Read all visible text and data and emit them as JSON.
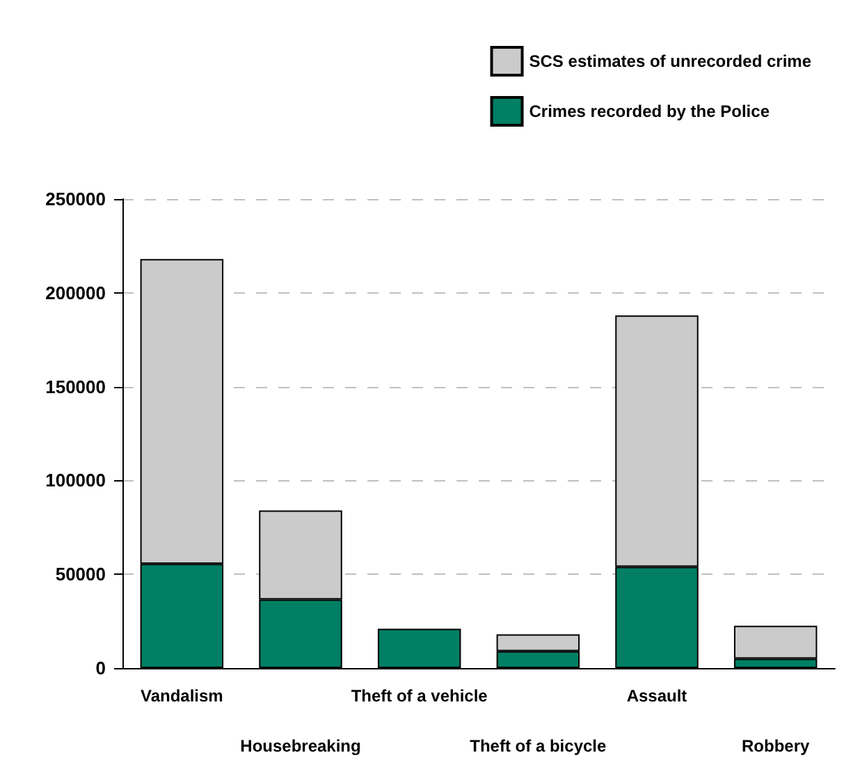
{
  "chart_data": {
    "type": "bar",
    "stacked": true,
    "categories": [
      "Vandalism",
      "Housebreaking",
      "Theft of a vehicle",
      "Theft of a bicycle",
      "Assault",
      "Robbery"
    ],
    "series": [
      {
        "name": "Crimes recorded by the Police",
        "color": "#007f64",
        "values": [
          55500,
          36500,
          21000,
          9000,
          54000,
          5000
        ]
      },
      {
        "name": "SCS estimates of unrecorded crime",
        "color": "#cbcbcb",
        "values": [
          162500,
          47500,
          null,
          9000,
          134000,
          17500
        ]
      }
    ],
    "ylim": [
      0,
      250000
    ],
    "yticks": [
      0,
      50000,
      100000,
      150000,
      200000,
      250000
    ],
    "grid": "y",
    "legend": "top right"
  }
}
